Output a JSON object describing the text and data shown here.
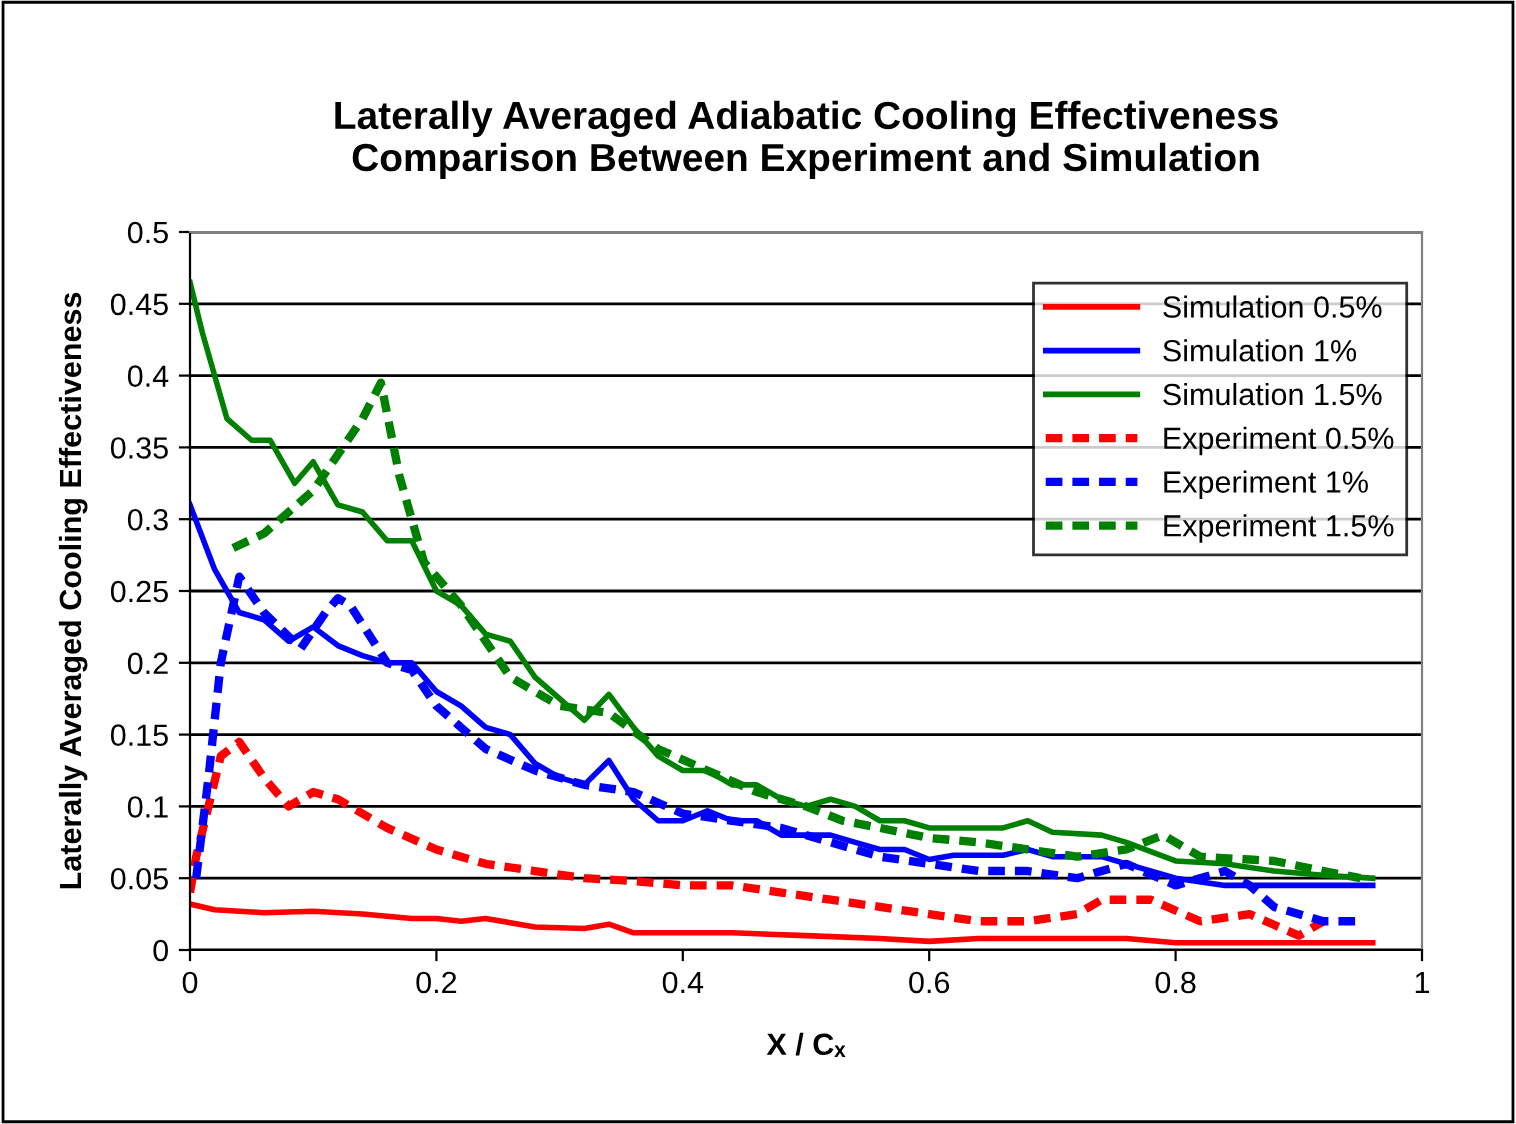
{
  "chart_data": {
    "type": "line",
    "title": "Laterally Averaged Adiabatic Cooling Effectiveness\nComparison Between Experiment and Simulation",
    "xlabel": "X / Cₓ",
    "ylabel": "Laterally Averaged Cooling Effectiveness",
    "xlim": [
      0,
      1
    ],
    "xticks": [
      0,
      0.2,
      0.4,
      0.6,
      0.8,
      1
    ],
    "ylim": [
      0,
      0.5
    ],
    "yticks": [
      0,
      0.05,
      0.1,
      0.15,
      0.2,
      0.25,
      0.3,
      0.35,
      0.4,
      0.45,
      0.5
    ],
    "grid": "y",
    "legend": "top right",
    "marker": "none",
    "series": [
      {
        "name": "Simulation 0.5%",
        "color": "#ff0000",
        "line_style": "solid",
        "x": [
          0,
          0.02,
          0.06,
          0.1,
          0.14,
          0.18,
          0.2,
          0.22,
          0.24,
          0.28,
          0.32,
          0.34,
          0.36,
          0.4,
          0.44,
          0.5,
          0.56,
          0.6,
          0.64,
          0.7,
          0.76,
          0.8,
          0.96
        ],
        "values": [
          0.032,
          0.028,
          0.026,
          0.027,
          0.025,
          0.022,
          0.022,
          0.02,
          0.022,
          0.016,
          0.015,
          0.018,
          0.012,
          0.012,
          0.012,
          0.01,
          0.008,
          0.006,
          0.008,
          0.008,
          0.008,
          0.005,
          0.005
        ]
      },
      {
        "name": "Simulation 1%",
        "color": "#0000ff",
        "line_style": "solid",
        "x": [
          0,
          0.02,
          0.04,
          0.06,
          0.08,
          0.1,
          0.12,
          0.14,
          0.16,
          0.18,
          0.2,
          0.22,
          0.24,
          0.26,
          0.28,
          0.3,
          0.32,
          0.34,
          0.36,
          0.38,
          0.4,
          0.42,
          0.44,
          0.46,
          0.48,
          0.5,
          0.52,
          0.54,
          0.56,
          0.58,
          0.6,
          0.62,
          0.66,
          0.68,
          0.7,
          0.74,
          0.76,
          0.8,
          0.84,
          0.9,
          0.96
        ],
        "values": [
          0.31,
          0.265,
          0.235,
          0.23,
          0.215,
          0.225,
          0.212,
          0.205,
          0.2,
          0.2,
          0.18,
          0.17,
          0.155,
          0.15,
          0.13,
          0.12,
          0.115,
          0.132,
          0.105,
          0.09,
          0.09,
          0.097,
          0.09,
          0.09,
          0.08,
          0.08,
          0.08,
          0.075,
          0.07,
          0.07,
          0.063,
          0.066,
          0.066,
          0.07,
          0.065,
          0.065,
          0.06,
          0.05,
          0.045,
          0.045,
          0.045
        ]
      },
      {
        "name": "Simulation 1.5%",
        "color": "#008000",
        "line_style": "solid",
        "x": [
          0,
          0.01,
          0.03,
          0.05,
          0.065,
          0.085,
          0.1,
          0.12,
          0.14,
          0.16,
          0.18,
          0.2,
          0.22,
          0.24,
          0.26,
          0.28,
          0.3,
          0.32,
          0.34,
          0.36,
          0.38,
          0.4,
          0.42,
          0.44,
          0.46,
          0.48,
          0.5,
          0.52,
          0.54,
          0.56,
          0.58,
          0.6,
          0.62,
          0.66,
          0.68,
          0.7,
          0.74,
          0.76,
          0.8,
          0.84,
          0.88,
          0.92,
          0.96
        ],
        "values": [
          0.465,
          0.43,
          0.37,
          0.355,
          0.355,
          0.325,
          0.34,
          0.31,
          0.305,
          0.285,
          0.285,
          0.25,
          0.24,
          0.22,
          0.215,
          0.19,
          0.175,
          0.16,
          0.178,
          0.155,
          0.135,
          0.125,
          0.125,
          0.115,
          0.115,
          0.105,
          0.1,
          0.105,
          0.1,
          0.09,
          0.09,
          0.085,
          0.085,
          0.085,
          0.09,
          0.082,
          0.08,
          0.075,
          0.062,
          0.06,
          0.055,
          0.052,
          0.05
        ]
      },
      {
        "name": "Experiment 0.5%",
        "color": "#ff0000",
        "line_style": "dashed",
        "x": [
          0,
          0.005,
          0.015,
          0.025,
          0.04,
          0.06,
          0.08,
          0.1,
          0.12,
          0.16,
          0.2,
          0.24,
          0.28,
          0.32,
          0.36,
          0.4,
          0.44,
          0.48,
          0.52,
          0.56,
          0.6,
          0.64,
          0.68,
          0.72,
          0.74,
          0.78,
          0.82,
          0.86,
          0.9,
          0.92
        ],
        "values": [
          0.04,
          0.065,
          0.1,
          0.135,
          0.145,
          0.12,
          0.1,
          0.11,
          0.105,
          0.085,
          0.07,
          0.06,
          0.055,
          0.05,
          0.048,
          0.045,
          0.045,
          0.04,
          0.035,
          0.03,
          0.025,
          0.02,
          0.02,
          0.025,
          0.035,
          0.035,
          0.02,
          0.025,
          0.01,
          0.02
        ]
      },
      {
        "name": "Experiment 1%",
        "color": "#0000ff",
        "line_style": "dashed",
        "x": [
          0.005,
          0.015,
          0.025,
          0.04,
          0.06,
          0.09,
          0.11,
          0.12,
          0.13,
          0.16,
          0.18,
          0.2,
          0.24,
          0.28,
          0.32,
          0.36,
          0.4,
          0.44,
          0.48,
          0.52,
          0.56,
          0.6,
          0.64,
          0.68,
          0.72,
          0.76,
          0.8,
          0.84,
          0.86,
          0.88,
          0.92,
          0.95
        ],
        "values": [
          0.05,
          0.12,
          0.2,
          0.26,
          0.235,
          0.21,
          0.235,
          0.245,
          0.24,
          0.2,
          0.195,
          0.17,
          0.14,
          0.125,
          0.115,
          0.11,
          0.095,
          0.09,
          0.085,
          0.075,
          0.065,
          0.06,
          0.055,
          0.055,
          0.05,
          0.06,
          0.045,
          0.055,
          0.045,
          0.03,
          0.02,
          0.02
        ]
      },
      {
        "name": "Experiment 1.5%",
        "color": "#008000",
        "line_style": "dashed",
        "x": [
          0.035,
          0.06,
          0.08,
          0.1,
          0.12,
          0.14,
          0.155,
          0.17,
          0.19,
          0.22,
          0.26,
          0.3,
          0.34,
          0.38,
          0.42,
          0.46,
          0.5,
          0.53,
          0.56,
          0.6,
          0.64,
          0.68,
          0.72,
          0.76,
          0.79,
          0.82,
          0.86,
          0.88,
          0.92,
          0.95
        ],
        "values": [
          0.28,
          0.29,
          0.305,
          0.32,
          0.345,
          0.37,
          0.395,
          0.33,
          0.27,
          0.24,
          0.19,
          0.17,
          0.165,
          0.14,
          0.125,
          0.11,
          0.1,
          0.09,
          0.085,
          0.078,
          0.075,
          0.07,
          0.065,
          0.07,
          0.08,
          0.065,
          0.063,
          0.062,
          0.055,
          0.05
        ]
      }
    ]
  }
}
